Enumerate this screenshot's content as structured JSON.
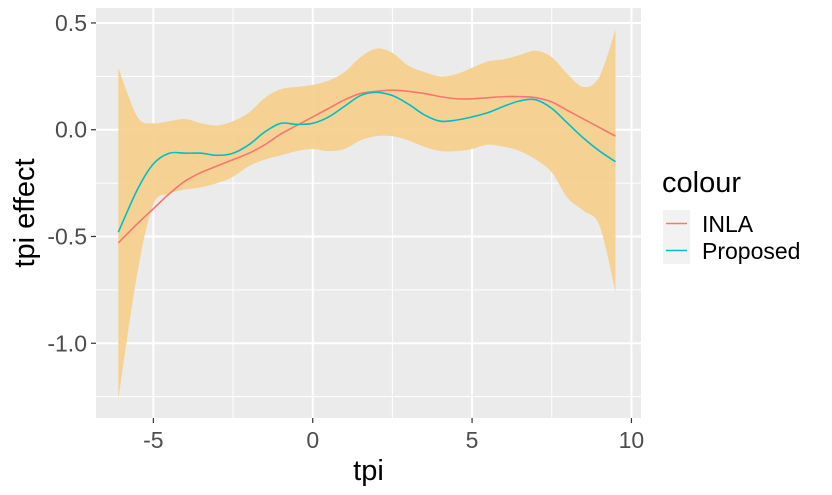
{
  "chart_data": {
    "type": "line",
    "xlabel": "tpi",
    "ylabel": "tpi effect",
    "xlim": [
      -6.8,
      10.3
    ],
    "ylim": [
      -1.35,
      0.57
    ],
    "x_ticks": [
      -5,
      0,
      5,
      10
    ],
    "x_tick_labels": [
      "-5",
      "0",
      "5",
      "10"
    ],
    "y_ticks": [
      -1.0,
      -0.5,
      0.0,
      0.5
    ],
    "y_tick_labels": [
      "-1.0",
      "-0.5",
      "0.0",
      "0.5"
    ],
    "grid": true,
    "legend": {
      "title": "colour",
      "position": "right",
      "entries": [
        "INLA",
        "Proposed"
      ]
    },
    "band": {
      "color": "#f5cf8b",
      "x": [
        -6.1,
        -5.5,
        -5.0,
        -4.5,
        -4.0,
        -3.5,
        -3.0,
        -2.5,
        -2.0,
        -1.5,
        -1.0,
        -0.5,
        0.0,
        0.5,
        1.0,
        1.5,
        2.0,
        2.5,
        3.0,
        3.5,
        4.0,
        4.5,
        5.0,
        5.5,
        6.0,
        6.5,
        7.0,
        7.5,
        8.0,
        8.5,
        9.0,
        9.5
      ],
      "upper": [
        0.29,
        0.06,
        0.03,
        0.04,
        0.05,
        0.03,
        0.02,
        0.04,
        0.08,
        0.15,
        0.19,
        0.2,
        0.21,
        0.23,
        0.27,
        0.34,
        0.38,
        0.36,
        0.3,
        0.27,
        0.25,
        0.26,
        0.29,
        0.32,
        0.33,
        0.35,
        0.37,
        0.34,
        0.26,
        0.2,
        0.25,
        0.47
      ],
      "lower": [
        -1.26,
        -0.67,
        -0.35,
        -0.3,
        -0.28,
        -0.27,
        -0.25,
        -0.22,
        -0.17,
        -0.14,
        -0.12,
        -0.1,
        -0.09,
        -0.1,
        -0.09,
        -0.05,
        -0.03,
        -0.03,
        -0.05,
        -0.08,
        -0.1,
        -0.1,
        -0.09,
        -0.07,
        -0.08,
        -0.1,
        -0.14,
        -0.2,
        -0.32,
        -0.38,
        -0.45,
        -0.76
      ]
    },
    "series": [
      {
        "name": "INLA",
        "color": "#f8766d",
        "x": [
          -6.1,
          -5.5,
          -5.0,
          -4.5,
          -4.0,
          -3.5,
          -3.0,
          -2.5,
          -2.0,
          -1.5,
          -1.0,
          -0.5,
          0.0,
          0.5,
          1.0,
          1.5,
          2.0,
          2.5,
          3.0,
          3.5,
          4.0,
          4.5,
          5.0,
          5.5,
          6.0,
          6.5,
          7.0,
          7.5,
          8.0,
          8.5,
          9.0,
          9.5
        ],
        "y": [
          -0.53,
          -0.44,
          -0.37,
          -0.3,
          -0.24,
          -0.2,
          -0.17,
          -0.14,
          -0.11,
          -0.07,
          -0.02,
          0.02,
          0.06,
          0.1,
          0.14,
          0.17,
          0.18,
          0.185,
          0.18,
          0.17,
          0.155,
          0.145,
          0.145,
          0.15,
          0.155,
          0.155,
          0.15,
          0.13,
          0.09,
          0.05,
          0.01,
          -0.03
        ]
      },
      {
        "name": "Proposed",
        "color": "#00bfc4",
        "x": [
          -6.1,
          -5.5,
          -5.0,
          -4.5,
          -4.0,
          -3.5,
          -3.0,
          -2.5,
          -2.0,
          -1.5,
          -1.0,
          -0.5,
          0.0,
          0.5,
          1.0,
          1.5,
          2.0,
          2.5,
          3.0,
          3.5,
          4.0,
          4.5,
          5.0,
          5.5,
          6.0,
          6.5,
          7.0,
          7.5,
          8.0,
          8.5,
          9.0,
          9.5
        ],
        "y": [
          -0.48,
          -0.28,
          -0.16,
          -0.11,
          -0.11,
          -0.11,
          -0.12,
          -0.11,
          -0.07,
          -0.01,
          0.03,
          0.025,
          0.03,
          0.06,
          0.11,
          0.16,
          0.175,
          0.16,
          0.12,
          0.07,
          0.04,
          0.045,
          0.06,
          0.08,
          0.11,
          0.135,
          0.14,
          0.1,
          0.03,
          -0.04,
          -0.1,
          -0.15
        ]
      }
    ]
  }
}
